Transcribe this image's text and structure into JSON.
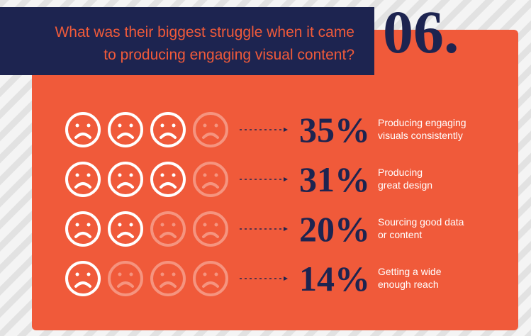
{
  "header": {
    "number": "06.",
    "question": [
      "What was their biggest struggle when it came",
      "to producing engaging visual content?"
    ]
  },
  "faces_total": 4,
  "items": [
    {
      "percent": "35%",
      "faces_filled": 3,
      "lines": [
        "Producing engaging",
        "visuals consistently"
      ]
    },
    {
      "percent": "31%",
      "faces_filled": 3,
      "lines": [
        "Producing",
        "great design"
      ]
    },
    {
      "percent": "20%",
      "faces_filled": 2,
      "lines": [
        "Sourcing good data",
        "or content"
      ]
    },
    {
      "percent": "14%",
      "faces_filled": 1,
      "lines": [
        "Getting a wide",
        "enough reach"
      ]
    }
  ]
}
